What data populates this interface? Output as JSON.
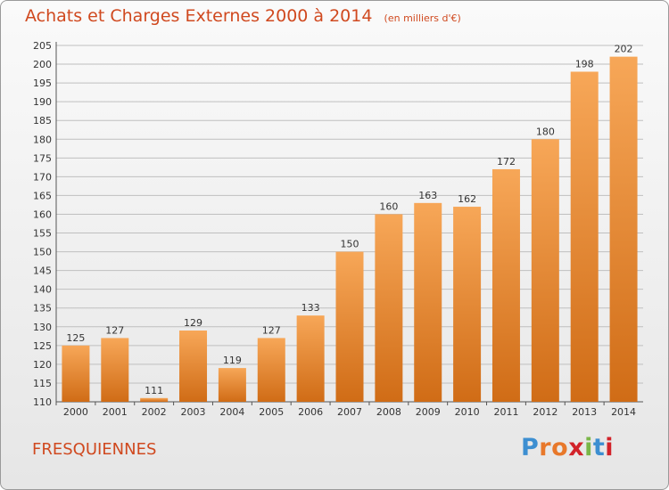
{
  "title": "Achats et Charges Externes 2000 à 2014",
  "unit_note": "(en milliers d'€)",
  "place": "FRESQUIENNES",
  "logo": {
    "text": "Proxiti",
    "letter_colors": [
      "#3d8fd1",
      "#e8782a",
      "#e8782a",
      "#d2232a",
      "#7ab648",
      "#3d8fd1",
      "#d2232a"
    ]
  },
  "colors": {
    "bar_light": "#f7a758",
    "bar_dark": "#d06c16",
    "title": "#d0491f",
    "grid": "#bfbfbf"
  },
  "chart_data": {
    "type": "bar",
    "title": "Achats et Charges Externes 2000 à 2014",
    "subtitle": "(en milliers d'€)",
    "xlabel": "",
    "ylabel": "",
    "categories": [
      "2000",
      "2001",
      "2002",
      "2003",
      "2004",
      "2005",
      "2006",
      "2007",
      "2008",
      "2009",
      "2010",
      "2011",
      "2012",
      "2013",
      "2014"
    ],
    "values": [
      125,
      127,
      111,
      129,
      119,
      127,
      133,
      150,
      160,
      163,
      162,
      172,
      180,
      198,
      202
    ],
    "ylim": [
      110,
      205
    ],
    "yticks": [
      110,
      115,
      120,
      125,
      130,
      135,
      140,
      145,
      150,
      155,
      160,
      165,
      170,
      175,
      180,
      185,
      190,
      195,
      200,
      205
    ],
    "grid": true,
    "data_labels": true
  }
}
